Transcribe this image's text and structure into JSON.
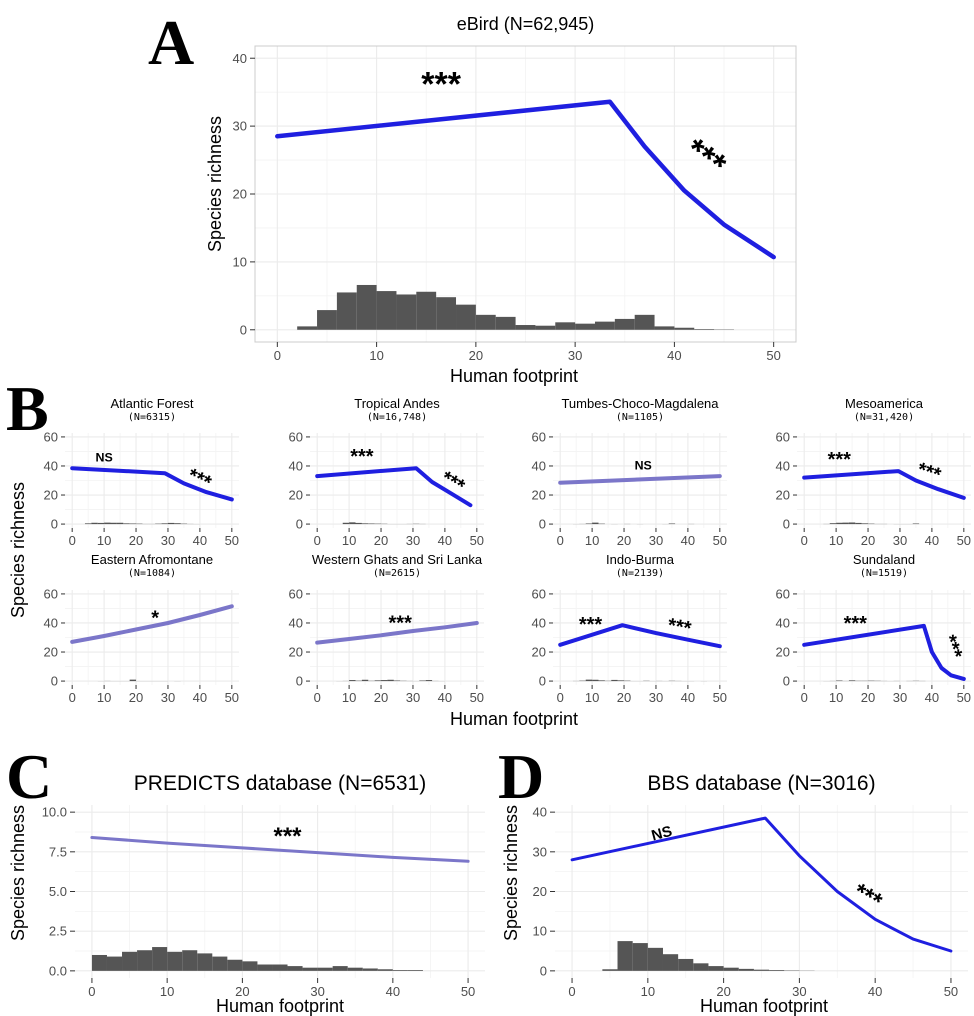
{
  "style": {
    "main_line_color": "#1f1fe0",
    "ns_line_color": "#7b76c9",
    "histogram_color": "#555555",
    "grid_color": "#ebebeb",
    "frame_color": "#cccccc",
    "text_color": "#4d4d4d"
  },
  "panels": {
    "A": {
      "letter": "A",
      "xlabel": "Human footprint",
      "ylabel": "Species richness"
    },
    "B": {
      "letter": "B",
      "xlabel": "Human footprint",
      "ylabel": "Species richness"
    },
    "C": {
      "letter": "C",
      "xlabel": "Human footprint",
      "ylabel": "Species richness"
    },
    "D": {
      "letter": "D",
      "xlabel": "Human footprint",
      "ylabel": "Species richness"
    }
  },
  "chart_data": [
    {
      "id": "A",
      "type": "line",
      "title": "eBird (N=62,945)",
      "xlim": [
        0,
        50
      ],
      "ylim": [
        0,
        40
      ],
      "xticks": [
        0,
        10,
        20,
        30,
        40,
        50
      ],
      "yticks": [
        0,
        10,
        20,
        30,
        40
      ],
      "line_style": "main",
      "grid": true,
      "curve": {
        "x": [
          0,
          33.5,
          33.5,
          37,
          41,
          45,
          50
        ],
        "y": [
          28.5,
          33.6,
          33.6,
          27,
          20.5,
          15.5,
          10.7
        ]
      },
      "histogram": {
        "bin_start": 0,
        "bin_width": 2,
        "values": [
          0,
          0.5,
          2.9,
          5.5,
          6.6,
          5.7,
          5.2,
          5.6,
          4.8,
          3.7,
          2.2,
          1.9,
          0.7,
          0.6,
          1.1,
          0.9,
          1.2,
          1.6,
          2.2,
          0.5,
          0.3,
          0.1,
          0.05,
          0,
          0
        ]
      },
      "annotations": [
        {
          "text": "***",
          "x": 16.5,
          "y": 34.5,
          "rotate": 0
        },
        {
          "text": "***",
          "x": 42.5,
          "y": 24,
          "rotate": 35
        }
      ]
    },
    {
      "id": "B1",
      "type": "line",
      "title": "Atlantic Forest",
      "subtitle": "(N=6315)",
      "xlim": [
        0,
        50
      ],
      "ylim": [
        0,
        60
      ],
      "xticks": [
        0,
        10,
        20,
        30,
        40,
        50
      ],
      "yticks": [
        0,
        20,
        40,
        60
      ],
      "line_style": "main",
      "grid": true,
      "curve": {
        "x": [
          0,
          29,
          29,
          35,
          42,
          50
        ],
        "y": [
          38.5,
          35,
          35,
          28,
          22,
          17
        ]
      },
      "histogram": {
        "bin_start": 0,
        "bin_width": 2,
        "values": [
          0,
          0,
          0.5,
          0.9,
          0.8,
          1.0,
          0.9,
          0.9,
          0.5,
          0.4,
          0.3,
          0.1,
          0.1,
          0.3,
          0.5,
          0.8,
          0.6,
          0.3,
          0.1,
          0.05,
          0,
          0,
          0,
          0,
          0
        ]
      },
      "annotations": [
        {
          "text": "NS",
          "x": 10,
          "y": 43,
          "rotate": 0
        },
        {
          "text": "***",
          "x": 39,
          "y": 27,
          "rotate": 25
        }
      ]
    },
    {
      "id": "B2",
      "type": "line",
      "title": "Tropical Andes",
      "subtitle": "(N=16,748)",
      "xlim": [
        0,
        50
      ],
      "ylim": [
        0,
        60
      ],
      "xticks": [
        0,
        10,
        20,
        30,
        40,
        50
      ],
      "yticks": [
        0,
        20,
        40,
        60
      ],
      "line_style": "main",
      "grid": true,
      "curve": {
        "x": [
          0,
          31,
          31,
          36,
          42,
          48
        ],
        "y": [
          33,
          38.5,
          38.5,
          29,
          21,
          13
        ]
      },
      "histogram": {
        "bin_start": 0,
        "bin_width": 2,
        "values": [
          0,
          0,
          0,
          0,
          0.9,
          1.2,
          0.8,
          0.5,
          0.4,
          0.3,
          0.2,
          0.05,
          0.05,
          0.05,
          0.1,
          0.2,
          0.1,
          0,
          0,
          0,
          0,
          0,
          0,
          0,
          0
        ]
      },
      "annotations": [
        {
          "text": "***",
          "x": 14,
          "y": 42,
          "rotate": 0
        },
        {
          "text": "***",
          "x": 41.5,
          "y": 25,
          "rotate": 30
        }
      ]
    },
    {
      "id": "B3",
      "type": "line",
      "title": "Tumbes-Choco-Magdalena",
      "subtitle": "(N=1105)",
      "xlim": [
        0,
        50
      ],
      "ylim": [
        0,
        60
      ],
      "xticks": [
        0,
        10,
        20,
        30,
        40,
        50
      ],
      "yticks": [
        0,
        20,
        40,
        60
      ],
      "line_style": "ns",
      "grid": true,
      "curve": {
        "x": [
          0,
          50
        ],
        "y": [
          28.5,
          33
        ]
      },
      "histogram": {
        "bin_start": 0,
        "bin_width": 2,
        "values": [
          0,
          0,
          0.05,
          0.1,
          0.4,
          1.0,
          0.3,
          0,
          0.05,
          0,
          0.1,
          0,
          0.05,
          0,
          0,
          0,
          0.05,
          0.4,
          0,
          0,
          0.1,
          0,
          0,
          0,
          0
        ]
      },
      "annotations": [
        {
          "text": "NS",
          "x": 26,
          "y": 37.5,
          "rotate": 0
        }
      ]
    },
    {
      "id": "B4",
      "type": "line",
      "title": "Mesoamerica",
      "subtitle": "(N=31,420)",
      "xlim": [
        0,
        50
      ],
      "ylim": [
        0,
        60
      ],
      "xticks": [
        0,
        10,
        20,
        30,
        40,
        50
      ],
      "yticks": [
        0,
        20,
        40,
        60
      ],
      "line_style": "main",
      "grid": true,
      "curve": {
        "x": [
          0,
          29.5,
          29.5,
          35,
          42,
          50
        ],
        "y": [
          32,
          36.5,
          36.5,
          30,
          24,
          18
        ]
      },
      "histogram": {
        "bin_start": 0,
        "bin_width": 2,
        "values": [
          0,
          0,
          0,
          0.1,
          0.6,
          0.9,
          1.0,
          1.1,
          0.8,
          0.5,
          0.3,
          0.1,
          0.1,
          0,
          0.05,
          0.05,
          0.05,
          0.4,
          0,
          0,
          0,
          0,
          0,
          0,
          0
        ]
      },
      "annotations": [
        {
          "text": "***",
          "x": 11,
          "y": 40,
          "rotate": 0
        },
        {
          "text": "***",
          "x": 38.5,
          "y": 31.5,
          "rotate": 18
        }
      ]
    },
    {
      "id": "B5",
      "type": "line",
      "title": "Eastern Afromontane",
      "subtitle": "(N=1084)",
      "xlim": [
        0,
        50
      ],
      "ylim": [
        0,
        60
      ],
      "xticks": [
        0,
        10,
        20,
        30,
        40,
        50
      ],
      "yticks": [
        0,
        20,
        40,
        60
      ],
      "line_style": "ns",
      "grid": true,
      "curve": {
        "x": [
          0,
          10,
          20,
          30,
          40,
          50
        ],
        "y": [
          27,
          31,
          35.5,
          40,
          45.5,
          51.5
        ]
      },
      "histogram": {
        "bin_start": 0,
        "bin_width": 2,
        "values": [
          0,
          0,
          0,
          0,
          0.05,
          0.1,
          0.05,
          0.05,
          0.05,
          1.0,
          0.05,
          0.05,
          0.05,
          0.05,
          0.05,
          0,
          0.05,
          0,
          0,
          0,
          0,
          0,
          0,
          0,
          0
        ]
      },
      "annotations": [
        {
          "text": "*",
          "x": 26,
          "y": 39,
          "rotate": 0
        }
      ]
    },
    {
      "id": "B6",
      "type": "line",
      "title": "Western Ghats and Sri Lanka",
      "subtitle": "(N=2615)",
      "xlim": [
        0,
        50
      ],
      "ylim": [
        0,
        60
      ],
      "xticks": [
        0,
        10,
        20,
        30,
        40,
        50
      ],
      "yticks": [
        0,
        20,
        40,
        60
      ],
      "line_style": "ns",
      "grid": true,
      "curve": {
        "x": [
          0,
          10,
          20,
          30,
          40,
          50
        ],
        "y": [
          26.5,
          29,
          31.5,
          34.5,
          37,
          40
        ]
      },
      "histogram": {
        "bin_start": 0,
        "bin_width": 2,
        "values": [
          0,
          0,
          0,
          0.05,
          0.1,
          0.7,
          0.3,
          0.9,
          0.2,
          0.5,
          0.7,
          0.9,
          0.4,
          0.2,
          0.1,
          0.05,
          0.4,
          0.7,
          0.1,
          0.05,
          0,
          0,
          0,
          0,
          0
        ]
      },
      "annotations": [
        {
          "text": "***",
          "x": 26,
          "y": 35.5,
          "rotate": 0
        }
      ]
    },
    {
      "id": "B7",
      "type": "line",
      "title": "Indo-Burma",
      "subtitle": "(N=2139)",
      "xlim": [
        0,
        50
      ],
      "ylim": [
        0,
        60
      ],
      "xticks": [
        0,
        10,
        20,
        30,
        40,
        50
      ],
      "yticks": [
        0,
        20,
        40,
        60
      ],
      "line_style": "main",
      "grid": true,
      "curve": {
        "x": [
          0,
          19.5,
          19.5,
          30,
          40,
          50
        ],
        "y": [
          25,
          38.5,
          38.5,
          33,
          28.5,
          24
        ]
      },
      "histogram": {
        "bin_start": 0,
        "bin_width": 2,
        "values": [
          0,
          0,
          0.1,
          0.3,
          1.0,
          0.9,
          0.5,
          0.2,
          0.8,
          0.5,
          0.3,
          0.05,
          0.05,
          0.2,
          0.05,
          0.1,
          0.05,
          0.2,
          0.1,
          0.05,
          0.05,
          0,
          0.05,
          0,
          0
        ]
      },
      "annotations": [
        {
          "text": "***",
          "x": 9.5,
          "y": 34.5,
          "rotate": 0
        },
        {
          "text": "***",
          "x": 37,
          "y": 33,
          "rotate": 10
        }
      ]
    },
    {
      "id": "B8",
      "type": "line",
      "title": "Sundaland",
      "subtitle": "(N=1519)",
      "xlim": [
        0,
        50
      ],
      "ylim": [
        0,
        60
      ],
      "xticks": [
        0,
        10,
        20,
        30,
        40,
        50
      ],
      "yticks": [
        0,
        20,
        40,
        60
      ],
      "line_style": "main",
      "grid": true,
      "curve": {
        "x": [
          0,
          37.5,
          37.5,
          40,
          43,
          46,
          50
        ],
        "y": [
          25,
          38,
          38,
          20,
          9,
          4,
          1.5
        ]
      },
      "histogram": {
        "bin_start": 0,
        "bin_width": 2,
        "values": [
          0,
          0,
          0,
          0.05,
          0.1,
          0.4,
          0.1,
          0.5,
          0.2,
          0.2,
          0.3,
          0.2,
          0.1,
          0.05,
          0.1,
          0,
          0.1,
          0.2,
          0.1,
          0,
          0,
          0,
          0,
          0,
          0
        ]
      },
      "annotations": [
        {
          "text": "***",
          "x": 16,
          "y": 35,
          "rotate": 0
        },
        {
          "text": "***",
          "x": 44.5,
          "y": 22,
          "rotate": 70
        }
      ]
    },
    {
      "id": "C",
      "type": "line",
      "title": "PREDICTS database (N=6531)",
      "xlim": [
        0,
        50
      ],
      "ylim": [
        0,
        10
      ],
      "xticks": [
        0,
        10,
        20,
        30,
        40,
        50
      ],
      "yticks": [
        0,
        2.5,
        5,
        7.5,
        10
      ],
      "ytick_labels": [
        "0.0",
        "2.5",
        "5.0",
        "7.5",
        "10.0"
      ],
      "line_style": "ns",
      "grid": true,
      "curve": {
        "x": [
          0,
          10,
          20,
          30,
          40,
          50
        ],
        "y": [
          8.4,
          8.05,
          7.75,
          7.45,
          7.15,
          6.9
        ]
      },
      "histogram": {
        "bin_start": 0,
        "bin_width": 2,
        "values": [
          1.0,
          0.9,
          1.2,
          1.3,
          1.5,
          1.2,
          1.3,
          1.1,
          0.9,
          0.7,
          0.6,
          0.4,
          0.4,
          0.3,
          0.2,
          0.2,
          0.3,
          0.2,
          0.15,
          0.1,
          0.05,
          0.05,
          0,
          0,
          0
        ]
      },
      "annotations": [
        {
          "text": "***",
          "x": 26,
          "y": 8.0,
          "rotate": 0
        }
      ]
    },
    {
      "id": "D",
      "type": "line",
      "title": "BBS database (N=3016)",
      "xlim": [
        0,
        50
      ],
      "ylim": [
        0,
        40
      ],
      "xticks": [
        0,
        10,
        20,
        30,
        40,
        50
      ],
      "yticks": [
        0,
        10,
        20,
        30,
        40
      ],
      "line_style": "main",
      "grid": true,
      "curve": {
        "x": [
          0,
          25.5,
          25.5,
          30,
          35,
          40,
          45,
          50
        ],
        "y": [
          28,
          38.5,
          38.5,
          29,
          20,
          13,
          8,
          5
        ]
      },
      "histogram": {
        "bin_start": 0,
        "bin_width": 2,
        "values": [
          0,
          0,
          0.4,
          7.5,
          7.0,
          5.8,
          4.2,
          3.0,
          1.9,
          1.2,
          0.8,
          0.5,
          0.3,
          0.2,
          0.1,
          0.05,
          0,
          0,
          0,
          0,
          0,
          0,
          0,
          0,
          0
        ]
      },
      "annotations": [
        {
          "text": "NS",
          "x": 12,
          "y": 33.5,
          "rotate": -15
        },
        {
          "text": "***",
          "x": 38.5,
          "y": 17,
          "rotate": 30
        }
      ]
    }
  ]
}
